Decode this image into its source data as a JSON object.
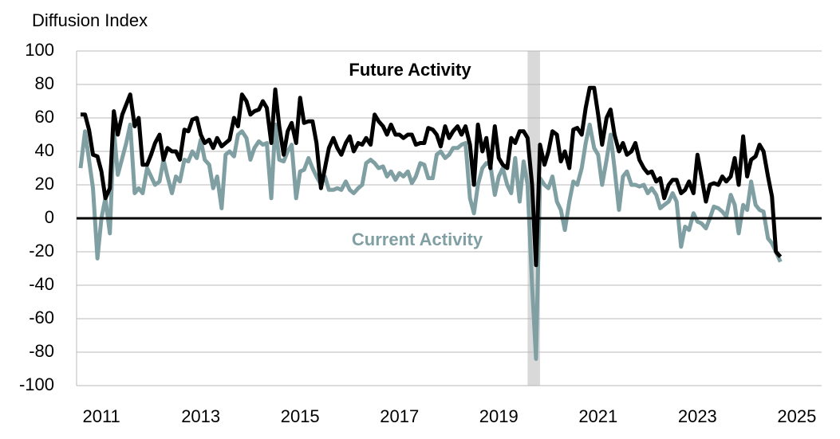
{
  "chart_data": {
    "type": "line",
    "y_axis_label": "Diffusion Index",
    "xlim": [
      2011,
      2026
    ],
    "xticks": [
      {
        "value": 2011.5,
        "label": "2011"
      },
      {
        "value": 2013.5,
        "label": "2013"
      },
      {
        "value": 2015.5,
        "label": "2015"
      },
      {
        "value": 2017.5,
        "label": "2017"
      },
      {
        "value": 2019.5,
        "label": "2019"
      },
      {
        "value": 2021.5,
        "label": "2021"
      },
      {
        "value": 2023.5,
        "label": "2023"
      },
      {
        "value": 2025.5,
        "label": "2025"
      }
    ],
    "ylim": [
      -100,
      100
    ],
    "yticks": [
      -100,
      -80,
      -60,
      -40,
      -20,
      0,
      20,
      40,
      60,
      80,
      100
    ],
    "grid": true,
    "shaded_span": [
      2020.08,
      2020.33
    ],
    "x": [
      2011.08,
      2011.17,
      2011.25,
      2011.33,
      2011.42,
      2011.5,
      2011.58,
      2011.67,
      2011.75,
      2011.83,
      2011.92,
      2012,
      2012.08,
      2012.17,
      2012.25,
      2012.33,
      2012.42,
      2012.5,
      2012.58,
      2012.67,
      2012.75,
      2012.83,
      2012.92,
      2013,
      2013.08,
      2013.17,
      2013.25,
      2013.33,
      2013.42,
      2013.5,
      2013.58,
      2013.67,
      2013.75,
      2013.83,
      2013.92,
      2014,
      2014.08,
      2014.17,
      2014.25,
      2014.33,
      2014.42,
      2014.5,
      2014.58,
      2014.67,
      2014.75,
      2014.83,
      2014.92,
      2015,
      2015.08,
      2015.17,
      2015.25,
      2015.33,
      2015.42,
      2015.5,
      2015.58,
      2015.67,
      2015.75,
      2015.83,
      2015.92,
      2016,
      2016.08,
      2016.17,
      2016.25,
      2016.33,
      2016.42,
      2016.5,
      2016.58,
      2016.67,
      2016.75,
      2016.83,
      2016.92,
      2017,
      2017.08,
      2017.17,
      2017.25,
      2017.33,
      2017.42,
      2017.5,
      2017.58,
      2017.67,
      2017.75,
      2017.83,
      2017.92,
      2018,
      2018.08,
      2018.17,
      2018.25,
      2018.33,
      2018.42,
      2018.5,
      2018.58,
      2018.67,
      2018.75,
      2018.83,
      2018.92,
      2019,
      2019.08,
      2019.17,
      2019.25,
      2019.33,
      2019.42,
      2019.5,
      2019.58,
      2019.67,
      2019.75,
      2019.83,
      2019.92,
      2020,
      2020.08,
      2020.17,
      2020.25,
      2020.33,
      2020.42,
      2020.5,
      2020.58,
      2020.67,
      2020.75,
      2020.83,
      2020.92,
      2021,
      2021.08,
      2021.17,
      2021.25,
      2021.33,
      2021.42,
      2021.5,
      2021.58,
      2021.67,
      2021.75,
      2021.83,
      2021.92,
      2022,
      2022.08,
      2022.17,
      2022.25,
      2022.33,
      2022.42,
      2022.5,
      2022.58,
      2022.67,
      2022.75,
      2022.83,
      2022.92,
      2023,
      2023.08,
      2023.17,
      2023.25,
      2023.33,
      2023.42,
      2023.5,
      2023.58,
      2023.67,
      2023.75,
      2023.83,
      2023.92,
      2024,
      2024.08,
      2024.17,
      2024.25,
      2024.33,
      2024.42,
      2024.5,
      2024.58,
      2024.67,
      2024.75,
      2024.83,
      2024.92,
      2025,
      2025.08,
      2025.17
    ],
    "series": [
      {
        "name": "Current Activity",
        "color": "#7f9fa3",
        "values": [
          30,
          52,
          35,
          18,
          -24,
          0,
          12,
          -9,
          53,
          26,
          36,
          45,
          56,
          15,
          18,
          15,
          30,
          25,
          20,
          22,
          35,
          25,
          15,
          25,
          22,
          35,
          34,
          40,
          36,
          47,
          35,
          32,
          18,
          25,
          6,
          38,
          40,
          37,
          50,
          52,
          48,
          35,
          42,
          46,
          44,
          45,
          12,
          56,
          35,
          34,
          40,
          44,
          12,
          28,
          29,
          36,
          30,
          25,
          20,
          25,
          17,
          17,
          18,
          17,
          22,
          17,
          15,
          18,
          20,
          33,
          35,
          33,
          30,
          31,
          25,
          28,
          23,
          27,
          25,
          28,
          21,
          25,
          33,
          32,
          24,
          24,
          38,
          40,
          36,
          38,
          42,
          42,
          44,
          45,
          12,
          3,
          20,
          30,
          33,
          32,
          14,
          25,
          30,
          20,
          15,
          36,
          10,
          34,
          20,
          -40,
          -84,
          24,
          20,
          18,
          25,
          10,
          5,
          -7,
          10,
          22,
          20,
          30,
          45,
          56,
          42,
          38,
          20,
          35,
          50,
          30,
          5,
          25,
          28,
          20,
          20,
          19,
          20,
          15,
          18,
          14,
          6,
          8,
          10,
          15,
          10,
          -17,
          -5,
          -7,
          3,
          -2,
          -3,
          -6,
          0,
          7,
          6,
          4,
          1,
          14,
          8,
          -9,
          8,
          5,
          22,
          8,
          5,
          4,
          -12,
          -15,
          -20,
          -26
        ]
      },
      {
        "name": "Future Activity",
        "color": "#000000",
        "values": [
          62,
          62,
          53,
          38,
          37,
          28,
          12,
          18,
          64,
          50,
          62,
          68,
          74,
          55,
          60,
          32,
          32,
          38,
          45,
          50,
          35,
          42,
          40,
          40,
          35,
          53,
          52,
          59,
          60,
          50,
          45,
          47,
          42,
          48,
          43,
          45,
          47,
          60,
          55,
          74,
          70,
          62,
          64,
          65,
          70,
          66,
          45,
          77,
          55,
          38,
          52,
          57,
          45,
          72,
          57,
          58,
          58,
          45,
          18,
          30,
          42,
          48,
          42,
          38,
          45,
          49,
          40,
          45,
          44,
          48,
          44,
          62,
          58,
          55,
          50,
          56,
          50,
          50,
          48,
          50,
          50,
          44,
          45,
          45,
          54,
          53,
          50,
          43,
          55,
          48,
          52,
          55,
          50,
          55,
          44,
          20,
          56,
          40,
          48,
          30,
          55,
          36,
          32,
          30,
          48,
          45,
          52,
          52,
          48,
          20,
          -28,
          44,
          32,
          40,
          52,
          50,
          34,
          40,
          30,
          53,
          54,
          50,
          66,
          78,
          78,
          62,
          44,
          60,
          65,
          50,
          40,
          45,
          38,
          40,
          45,
          35,
          30,
          27,
          28,
          22,
          24,
          12,
          20,
          23,
          23,
          15,
          17,
          22,
          15,
          38,
          25,
          10,
          20,
          21,
          20,
          25,
          22,
          25,
          36,
          20,
          49,
          25,
          35,
          37,
          44,
          40,
          25,
          13,
          -20,
          -23
        ]
      }
    ]
  }
}
